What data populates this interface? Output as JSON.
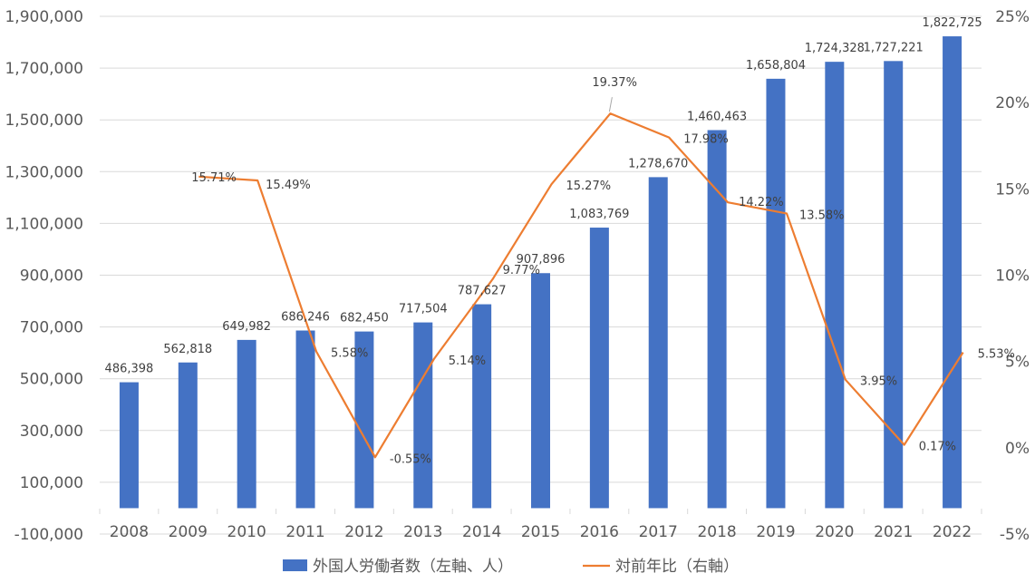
{
  "chart_data": {
    "type": "bar",
    "categories": [
      "2008",
      "2009",
      "2010",
      "2011",
      "2012",
      "2013",
      "2014",
      "2015",
      "2016",
      "2017",
      "2018",
      "2019",
      "2020",
      "2021",
      "2022"
    ],
    "series": [
      {
        "name": "外国人労働者数（左軸、人）",
        "type": "bar",
        "axis": "left",
        "color": "#4472C4",
        "values": [
          486398,
          562818,
          649982,
          686246,
          682450,
          717504,
          787627,
          907896,
          1083769,
          1278670,
          1460463,
          1658804,
          1724328,
          1727221,
          1822725
        ],
        "labels": [
          "486,398",
          "562,818",
          "649,982",
          "686,246",
          "682,450",
          "717,504",
          "787,627",
          "907,896",
          "1,083,769",
          "1,278,670",
          "1,460,463",
          "1,658,804",
          "1,724,328",
          "1,727,221",
          "1,822,725"
        ]
      },
      {
        "name": "対前年比（右軸）",
        "type": "line",
        "axis": "right",
        "color": "#ED7D31",
        "values": [
          null,
          15.71,
          15.49,
          5.58,
          -0.55,
          5.14,
          9.77,
          15.27,
          19.37,
          17.98,
          14.22,
          13.58,
          3.95,
          0.17,
          5.53
        ],
        "labels": [
          "",
          "15.71%",
          "15.49%",
          "5.58%",
          "-0.55%",
          "5.14%",
          "9.77%",
          "15.27%",
          "19.37%",
          "17.98%",
          "14.22%",
          "13.58%",
          "3.95%",
          "0.17%",
          "5.53%"
        ]
      }
    ],
    "left_axis": {
      "ylim": [
        -100000,
        1900000
      ],
      "ticks": [
        -100000,
        100000,
        300000,
        500000,
        700000,
        900000,
        1100000,
        1300000,
        1500000,
        1700000,
        1900000
      ],
      "tick_labels": [
        "-100,000",
        "100,000",
        "300,000",
        "500,000",
        "700,000",
        "900,000",
        "1,100,000",
        "1,300,000",
        "1,500,000",
        "1,700,000",
        "1,900,000"
      ]
    },
    "right_axis": {
      "ylim": [
        -5,
        25
      ],
      "ticks": [
        -5,
        0,
        5,
        10,
        15,
        20,
        25
      ],
      "tick_labels": [
        "-5%",
        "0%",
        "5%",
        "10%",
        "15%",
        "20%",
        "25%"
      ]
    },
    "grid": true,
    "legend_position": "bottom"
  }
}
